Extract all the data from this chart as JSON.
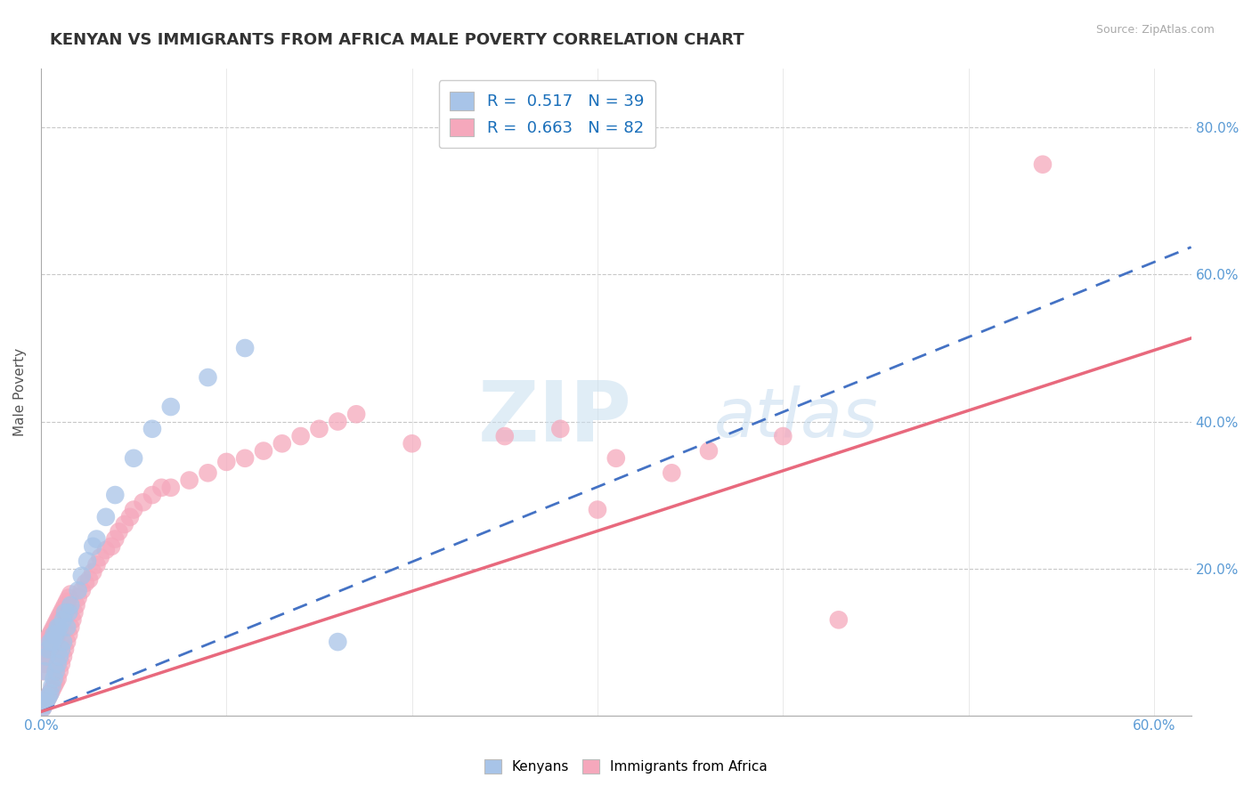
{
  "title": "KENYAN VS IMMIGRANTS FROM AFRICA MALE POVERTY CORRELATION CHART",
  "source": "Source: ZipAtlas.com",
  "xlabel": "",
  "ylabel": "Male Poverty",
  "xlim": [
    0.0,
    0.62
  ],
  "ylim": [
    0.0,
    0.88
  ],
  "xticks": [
    0.0,
    0.1,
    0.2,
    0.3,
    0.4,
    0.5,
    0.6
  ],
  "xticklabels": [
    "0.0%",
    "",
    "",
    "",
    "",
    "",
    "60.0%"
  ],
  "yticks": [
    0.0,
    0.2,
    0.4,
    0.6,
    0.8
  ],
  "yticklabels_right": [
    "",
    "20.0%",
    "40.0%",
    "60.0%",
    "80.0%"
  ],
  "kenyans_R": 0.517,
  "kenyans_N": 39,
  "immigrants_R": 0.663,
  "immigrants_N": 82,
  "kenyan_color": "#a8c4e8",
  "immigrant_color": "#f5a8bc",
  "kenyan_line_color": "#4472c4",
  "immigrant_line_color": "#e8697d",
  "background_color": "#ffffff",
  "title_fontsize": 13,
  "label_fontsize": 11,
  "tick_fontsize": 11,
  "legend_fontsize": 13,
  "kenyan_line_slope": 1.02,
  "kenyan_line_intercept": 0.005,
  "immigrant_line_slope": 0.82,
  "immigrant_line_intercept": 0.005,
  "kenyans_x": [
    0.001,
    0.002,
    0.002,
    0.003,
    0.003,
    0.004,
    0.004,
    0.005,
    0.005,
    0.006,
    0.006,
    0.007,
    0.007,
    0.008,
    0.008,
    0.009,
    0.009,
    0.01,
    0.01,
    0.011,
    0.012,
    0.012,
    0.013,
    0.014,
    0.015,
    0.016,
    0.02,
    0.022,
    0.025,
    0.028,
    0.03,
    0.035,
    0.04,
    0.05,
    0.06,
    0.07,
    0.09,
    0.11,
    0.16
  ],
  "kenyans_y": [
    0.01,
    0.015,
    0.06,
    0.02,
    0.08,
    0.025,
    0.09,
    0.03,
    0.1,
    0.04,
    0.1,
    0.05,
    0.11,
    0.06,
    0.11,
    0.07,
    0.12,
    0.08,
    0.12,
    0.09,
    0.13,
    0.1,
    0.14,
    0.12,
    0.14,
    0.15,
    0.17,
    0.19,
    0.21,
    0.23,
    0.24,
    0.27,
    0.3,
    0.35,
    0.39,
    0.42,
    0.46,
    0.5,
    0.1
  ],
  "immigrants_x": [
    0.001,
    0.001,
    0.002,
    0.002,
    0.002,
    0.003,
    0.003,
    0.003,
    0.004,
    0.004,
    0.004,
    0.005,
    0.005,
    0.005,
    0.006,
    0.006,
    0.006,
    0.007,
    0.007,
    0.007,
    0.008,
    0.008,
    0.008,
    0.009,
    0.009,
    0.009,
    0.01,
    0.01,
    0.01,
    0.011,
    0.011,
    0.012,
    0.012,
    0.013,
    0.013,
    0.014,
    0.014,
    0.015,
    0.015,
    0.016,
    0.016,
    0.017,
    0.018,
    0.019,
    0.02,
    0.022,
    0.024,
    0.026,
    0.028,
    0.03,
    0.032,
    0.035,
    0.038,
    0.04,
    0.042,
    0.045,
    0.048,
    0.05,
    0.055,
    0.06,
    0.065,
    0.07,
    0.08,
    0.09,
    0.1,
    0.11,
    0.12,
    0.13,
    0.14,
    0.15,
    0.16,
    0.17,
    0.2,
    0.25,
    0.28,
    0.3,
    0.31,
    0.34,
    0.36,
    0.4,
    0.54,
    0.43
  ],
  "immigrants_y": [
    0.01,
    0.06,
    0.015,
    0.07,
    0.09,
    0.02,
    0.08,
    0.1,
    0.025,
    0.085,
    0.105,
    0.03,
    0.09,
    0.11,
    0.035,
    0.095,
    0.115,
    0.04,
    0.1,
    0.12,
    0.045,
    0.105,
    0.125,
    0.05,
    0.11,
    0.13,
    0.06,
    0.115,
    0.135,
    0.07,
    0.14,
    0.08,
    0.145,
    0.09,
    0.15,
    0.1,
    0.155,
    0.11,
    0.16,
    0.12,
    0.165,
    0.13,
    0.14,
    0.15,
    0.16,
    0.17,
    0.18,
    0.185,
    0.195,
    0.205,
    0.215,
    0.225,
    0.23,
    0.24,
    0.25,
    0.26,
    0.27,
    0.28,
    0.29,
    0.3,
    0.31,
    0.31,
    0.32,
    0.33,
    0.345,
    0.35,
    0.36,
    0.37,
    0.38,
    0.39,
    0.4,
    0.41,
    0.37,
    0.38,
    0.39,
    0.28,
    0.35,
    0.33,
    0.36,
    0.38,
    0.75,
    0.13
  ]
}
